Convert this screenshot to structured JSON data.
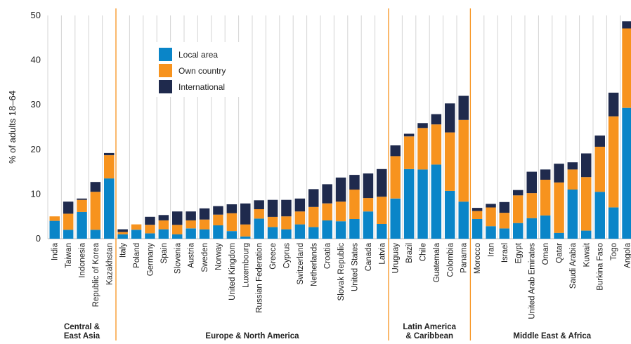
{
  "chart_data": {
    "type": "bar",
    "stacked": true,
    "ylabel": "% of adults 18–64",
    "ylim": [
      0,
      50
    ],
    "yticks": [
      0,
      10,
      20,
      30,
      40,
      50
    ],
    "grid": "vertical",
    "legend_position": "top-left",
    "categories": [
      "India",
      "Taiwan",
      "Indonesia",
      "Republic of Korea",
      "Kazakhstan",
      "Italy",
      "Poland",
      "Germany",
      "Spain",
      "Slovenia",
      "Austria",
      "Sweden",
      "Norway",
      "United Kingdom",
      "Luxembourg",
      "Russian Federation",
      "Greece",
      "Cyprus",
      "Switzerland",
      "Netherlands",
      "Croatia",
      "Slovak Republic",
      "United States",
      "Canada",
      "Latvia",
      "Uruguay",
      "Brazil",
      "Chile",
      "Guatemala",
      "Colombia",
      "Panama",
      "Morocco",
      "Iran",
      "Israel",
      "Egypt",
      "United Arab Emirates",
      "Oman",
      "Qatar",
      "Saudi Arabia",
      "Kuwait",
      "Burkina Faso",
      "Togo",
      "Angola"
    ],
    "series": [
      {
        "name": "Local area",
        "color": "#0a85c8",
        "values": [
          4.0,
          2.0,
          6.0,
          2.0,
          13.5,
          1.0,
          2.0,
          1.2,
          2.1,
          1.0,
          2.3,
          2.1,
          3.0,
          1.7,
          0.5,
          4.5,
          2.6,
          2.1,
          3.2,
          2.6,
          4.1,
          3.9,
          4.4,
          6.1,
          3.3,
          9.0,
          15.6,
          15.5,
          16.6,
          10.7,
          8.3,
          4.4,
          2.8,
          2.3,
          3.5,
          4.6,
          5.2,
          1.3,
          11.0,
          1.8,
          10.5,
          7.0,
          29.3
        ]
      },
      {
        "name": "Own country",
        "color": "#f7931e",
        "values": [
          1.0,
          3.6,
          2.7,
          8.5,
          5.2,
          0.5,
          1.2,
          1.9,
          2.0,
          2.1,
          1.8,
          2.2,
          2.4,
          4.0,
          2.7,
          2.1,
          2.3,
          2.9,
          2.9,
          4.5,
          3.8,
          4.4,
          6.6,
          3.0,
          6.1,
          9.5,
          7.3,
          9.3,
          9.0,
          13.1,
          18.3,
          1.8,
          4.2,
          3.5,
          6.2,
          5.6,
          8.0,
          11.3,
          4.5,
          12.0,
          10.1,
          20.4,
          17.8
        ]
      },
      {
        "name": "International",
        "color": "#1f2a4d",
        "values": [
          0.0,
          2.7,
          0.3,
          2.2,
          0.5,
          0.6,
          0.0,
          1.8,
          1.2,
          3.0,
          2.0,
          2.5,
          1.9,
          2.0,
          4.7,
          2.0,
          3.8,
          3.7,
          2.9,
          4.0,
          4.3,
          5.4,
          3.3,
          5.5,
          6.2,
          2.4,
          0.6,
          1.1,
          2.3,
          6.5,
          5.4,
          0.7,
          0.8,
          2.4,
          1.2,
          4.8,
          2.3,
          4.2,
          1.6,
          5.3,
          2.5,
          5.3,
          1.6
        ]
      }
    ],
    "regions": [
      {
        "name": "Central &\nEast Asia",
        "start": 0,
        "end": 4
      },
      {
        "name": "Europe & North America",
        "start": 5,
        "end": 24
      },
      {
        "name": "Latin America\n& Caribbean",
        "start": 25,
        "end": 30
      },
      {
        "name": "Middle East & Africa",
        "start": 31,
        "end": 42
      }
    ],
    "region_separator_color": "#f7931e"
  }
}
